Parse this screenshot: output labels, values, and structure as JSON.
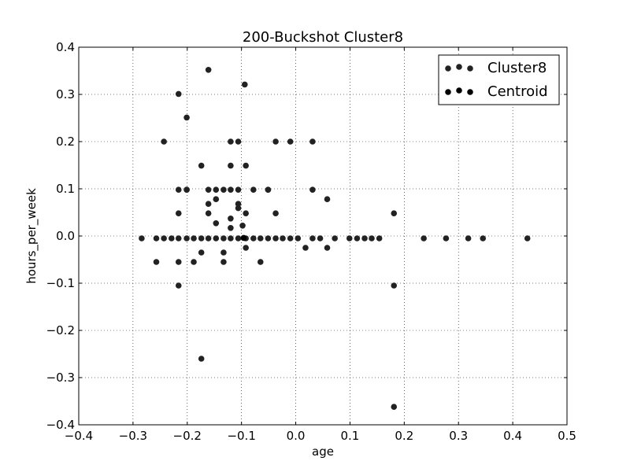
{
  "chart_data": {
    "type": "scatter",
    "title": "200-Buckshot Cluster8",
    "xlabel": "age",
    "ylabel": "hours_per_week",
    "xlim": [
      -0.4,
      0.5
    ],
    "ylim": [
      -0.4,
      0.4
    ],
    "xticks": [
      -0.4,
      -0.3,
      -0.2,
      -0.1,
      0.0,
      0.1,
      0.2,
      0.3,
      0.4,
      0.5
    ],
    "yticks": [
      -0.4,
      -0.3,
      -0.2,
      -0.1,
      0.0,
      0.1,
      0.2,
      0.3,
      0.4
    ],
    "xtick_labels": [
      "−0.4",
      "−0.3",
      "−0.2",
      "−0.1",
      "0.0",
      "0.1",
      "0.2",
      "0.3",
      "0.4",
      "0.5"
    ],
    "ytick_labels": [
      "−0.4",
      "−0.3",
      "−0.2",
      "−0.1",
      "0.0",
      "0.1",
      "0.2",
      "0.3",
      "0.4"
    ],
    "grid": true,
    "legend_position": "top-right",
    "marker_color": "#222222",
    "series": [
      {
        "name": "Cluster8",
        "color": "#222222",
        "points": [
          [
            -0.161,
            0.352
          ],
          [
            -0.094,
            0.321
          ],
          [
            -0.216,
            0.301
          ],
          [
            -0.201,
            0.251
          ],
          [
            -0.243,
            0.2
          ],
          [
            -0.12,
            0.2
          ],
          [
            -0.106,
            0.2
          ],
          [
            -0.037,
            0.2
          ],
          [
            -0.01,
            0.2
          ],
          [
            0.031,
            0.2
          ],
          [
            -0.174,
            0.149
          ],
          [
            -0.12,
            0.149
          ],
          [
            -0.092,
            0.149
          ],
          [
            -0.216,
            0.098
          ],
          [
            -0.201,
            0.098
          ],
          [
            -0.201,
            0.098
          ],
          [
            -0.161,
            0.098
          ],
          [
            -0.147,
            0.098
          ],
          [
            -0.133,
            0.098
          ],
          [
            -0.12,
            0.098
          ],
          [
            -0.106,
            0.098
          ],
          [
            -0.078,
            0.098
          ],
          [
            -0.051,
            0.098
          ],
          [
            -0.051,
            0.098
          ],
          [
            0.031,
            0.098
          ],
          [
            -0.147,
            0.078
          ],
          [
            0.058,
            0.078
          ],
          [
            -0.106,
            0.068
          ],
          [
            -0.161,
            0.068
          ],
          [
            -0.106,
            0.059
          ],
          [
            -0.216,
            0.048
          ],
          [
            -0.161,
            0.048
          ],
          [
            -0.092,
            0.048
          ],
          [
            -0.037,
            0.048
          ],
          [
            0.181,
            0.048
          ],
          [
            -0.12,
            0.037
          ],
          [
            -0.147,
            0.027
          ],
          [
            -0.12,
            0.017
          ],
          [
            -0.098,
            0.022
          ],
          [
            -0.284,
            -0.005
          ],
          [
            -0.257,
            -0.005
          ],
          [
            -0.243,
            -0.005
          ],
          [
            -0.229,
            -0.005
          ],
          [
            -0.216,
            -0.005
          ],
          [
            -0.201,
            -0.005
          ],
          [
            -0.188,
            -0.005
          ],
          [
            -0.174,
            -0.005
          ],
          [
            -0.161,
            -0.005
          ],
          [
            -0.147,
            -0.005
          ],
          [
            -0.133,
            -0.005
          ],
          [
            -0.12,
            -0.005
          ],
          [
            -0.106,
            -0.005
          ],
          [
            -0.092,
            -0.005
          ],
          [
            -0.078,
            -0.005
          ],
          [
            -0.065,
            -0.005
          ],
          [
            -0.051,
            -0.005
          ],
          [
            -0.037,
            -0.005
          ],
          [
            -0.024,
            -0.005
          ],
          [
            -0.01,
            -0.005
          ],
          [
            0.004,
            -0.005
          ],
          [
            0.031,
            -0.005
          ],
          [
            0.045,
            -0.005
          ],
          [
            0.072,
            -0.005
          ],
          [
            0.099,
            -0.005
          ],
          [
            0.113,
            -0.005
          ],
          [
            0.127,
            -0.005
          ],
          [
            0.14,
            -0.005
          ],
          [
            0.154,
            -0.005
          ],
          [
            0.236,
            -0.005
          ],
          [
            0.277,
            -0.005
          ],
          [
            0.318,
            -0.005
          ],
          [
            0.345,
            -0.005
          ],
          [
            0.427,
            -0.005
          ],
          [
            -0.092,
            -0.025
          ],
          [
            0.018,
            -0.025
          ],
          [
            0.058,
            -0.025
          ],
          [
            -0.174,
            -0.035
          ],
          [
            -0.133,
            -0.035
          ],
          [
            -0.257,
            -0.055
          ],
          [
            -0.216,
            -0.055
          ],
          [
            -0.188,
            -0.055
          ],
          [
            -0.133,
            -0.055
          ],
          [
            -0.065,
            -0.055
          ],
          [
            -0.216,
            -0.105
          ],
          [
            0.181,
            -0.105
          ],
          [
            -0.174,
            -0.26
          ],
          [
            0.181,
            -0.362
          ]
        ]
      },
      {
        "name": "Centroid",
        "color": "#000000",
        "points": [
          [
            -0.096,
            -0.004
          ]
        ]
      }
    ]
  }
}
